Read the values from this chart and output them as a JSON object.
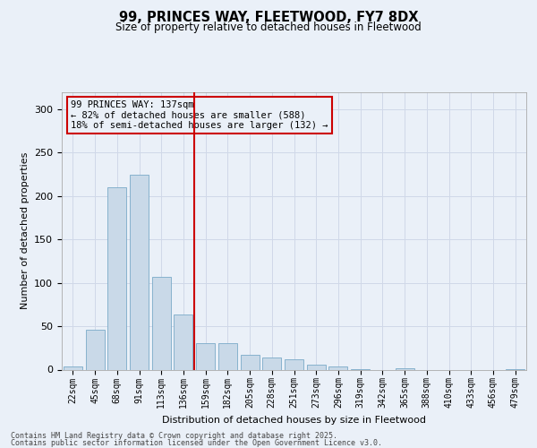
{
  "title1": "99, PRINCES WAY, FLEETWOOD, FY7 8DX",
  "title2": "Size of property relative to detached houses in Fleetwood",
  "xlabel": "Distribution of detached houses by size in Fleetwood",
  "ylabel": "Number of detached properties",
  "categories": [
    "22sqm",
    "45sqm",
    "68sqm",
    "91sqm",
    "113sqm",
    "136sqm",
    "159sqm",
    "182sqm",
    "205sqm",
    "228sqm",
    "251sqm",
    "273sqm",
    "296sqm",
    "319sqm",
    "342sqm",
    "365sqm",
    "388sqm",
    "410sqm",
    "433sqm",
    "456sqm",
    "479sqm"
  ],
  "values": [
    4,
    46,
    210,
    225,
    107,
    63,
    30,
    30,
    17,
    14,
    12,
    6,
    4,
    1,
    0,
    2,
    0,
    0,
    0,
    0,
    1
  ],
  "bar_color": "#c9d9e8",
  "bar_edge_color": "#7aaac8",
  "grid_color": "#d0d8e8",
  "background_color": "#eaf0f8",
  "vline_x": 5.5,
  "vline_color": "#cc0000",
  "annotation_text": "99 PRINCES WAY: 137sqm\n← 82% of detached houses are smaller (588)\n18% of semi-detached houses are larger (132) →",
  "annotation_box_color": "#cc0000",
  "footer1": "Contains HM Land Registry data © Crown copyright and database right 2025.",
  "footer2": "Contains public sector information licensed under the Open Government Licence v3.0.",
  "ylim": [
    0,
    320
  ],
  "yticks": [
    0,
    50,
    100,
    150,
    200,
    250,
    300
  ]
}
